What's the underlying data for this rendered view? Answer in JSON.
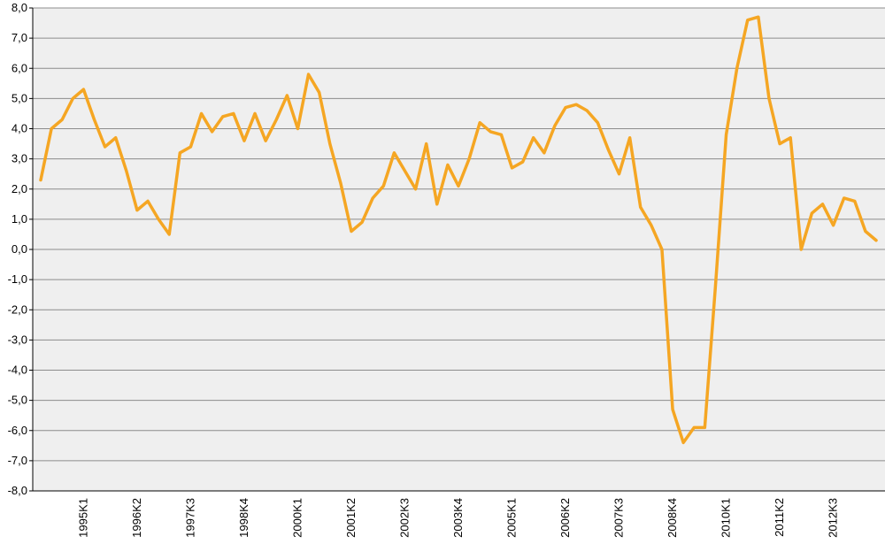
{
  "chart_data": {
    "type": "line",
    "ylim": [
      -8,
      8
    ],
    "y_ticks": [
      "8,0",
      "7,0",
      "6,0",
      "5,0",
      "4,0",
      "3,0",
      "2,0",
      "1,0",
      "0,0",
      "-1,0",
      "-2,0",
      "-3,0",
      "-4,0",
      "-5,0",
      "-6,0",
      "-7,0",
      "-8,0"
    ],
    "x_tick_labels": [
      {
        "label": "1995K1",
        "index": 4
      },
      {
        "label": "1996K2",
        "index": 9
      },
      {
        "label": "1997K3",
        "index": 14
      },
      {
        "label": "1998K4",
        "index": 19
      },
      {
        "label": "2000K1",
        "index": 24
      },
      {
        "label": "2001K2",
        "index": 29
      },
      {
        "label": "2002K3",
        "index": 34
      },
      {
        "label": "2003K4",
        "index": 39
      },
      {
        "label": "2005K1",
        "index": 44
      },
      {
        "label": "2006K2",
        "index": 49
      },
      {
        "label": "2007K3",
        "index": 54
      },
      {
        "label": "2008K4",
        "index": 59
      },
      {
        "label": "2010K1",
        "index": 64
      },
      {
        "label": "2011K2",
        "index": 69
      },
      {
        "label": "2012K3",
        "index": 74
      }
    ],
    "grid": true,
    "line_color": "#F5A623",
    "plot_bg": "#EFEFEF",
    "grid_color": "#8C8C8C",
    "series": [
      {
        "values": [
          2.3,
          4.0,
          4.3,
          5.0,
          5.3,
          4.3,
          3.4,
          3.7,
          2.6,
          1.3,
          1.6,
          1.0,
          0.5,
          3.2,
          3.4,
          4.5,
          3.9,
          4.4,
          4.5,
          3.6,
          4.5,
          3.6,
          4.3,
          5.1,
          4.0,
          5.8,
          5.2,
          3.5,
          2.2,
          0.6,
          0.9,
          1.7,
          2.1,
          3.2,
          2.6,
          2.0,
          3.5,
          1.5,
          2.8,
          2.1,
          3.0,
          4.2,
          3.9,
          3.8,
          2.7,
          2.9,
          3.7,
          3.2,
          4.1,
          4.7,
          4.8,
          4.6,
          4.2,
          3.3,
          2.5,
          3.7,
          1.4,
          0.8,
          0.0,
          -5.3,
          -6.4,
          -5.9,
          -5.9,
          -1.2,
          3.8,
          6.0,
          7.6,
          7.7,
          5.0,
          3.5,
          3.7,
          0.0,
          1.2,
          1.5,
          0.8,
          1.7,
          1.6,
          0.6,
          0.3
        ]
      }
    ]
  }
}
